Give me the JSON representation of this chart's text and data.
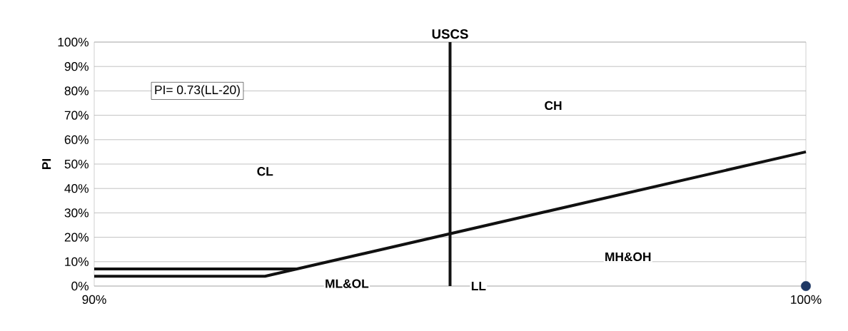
{
  "chart_data": {
    "type": "line",
    "title": "USCS",
    "ylabel": "PI",
    "xlim": [
      90,
      100
    ],
    "ylim": [
      0,
      100
    ],
    "xticks": [
      {
        "value": 90,
        "label": "90%"
      },
      {
        "value": 100,
        "label": "100%"
      }
    ],
    "yticks": [
      {
        "value": 0,
        "label": "0%"
      },
      {
        "value": 10,
        "label": "10%"
      },
      {
        "value": 20,
        "label": "20%"
      },
      {
        "value": 30,
        "label": "30%"
      },
      {
        "value": 40,
        "label": "40%"
      },
      {
        "value": 50,
        "label": "50%"
      },
      {
        "value": 60,
        "label": "60%"
      },
      {
        "value": 70,
        "label": "70%"
      },
      {
        "value": 80,
        "label": "80%"
      },
      {
        "value": 90,
        "label": "90%"
      },
      {
        "value": 100,
        "label": "100%"
      }
    ],
    "grid": "y",
    "legend": false,
    "series": [
      {
        "color": "#111111",
        "marker": "none",
        "x": [
          90,
          92.4,
          100
        ],
        "values": [
          4,
          4,
          55
        ]
      },
      {
        "color": "#111111",
        "marker": "none",
        "x": [
          90,
          92.85
        ],
        "values": [
          7,
          7
        ]
      },
      {
        "type": "scatter",
        "color": "#1f3864",
        "marker": "circle",
        "x": [
          100
        ],
        "values": [
          0
        ]
      }
    ],
    "ref_lines": [
      {
        "axis": "x",
        "value": 95,
        "color": "#111111"
      }
    ],
    "annotations": [
      "PI= 0.73(LL-20)",
      "CL",
      "CH",
      "ML&OL",
      "MH&OH",
      "LL"
    ]
  }
}
